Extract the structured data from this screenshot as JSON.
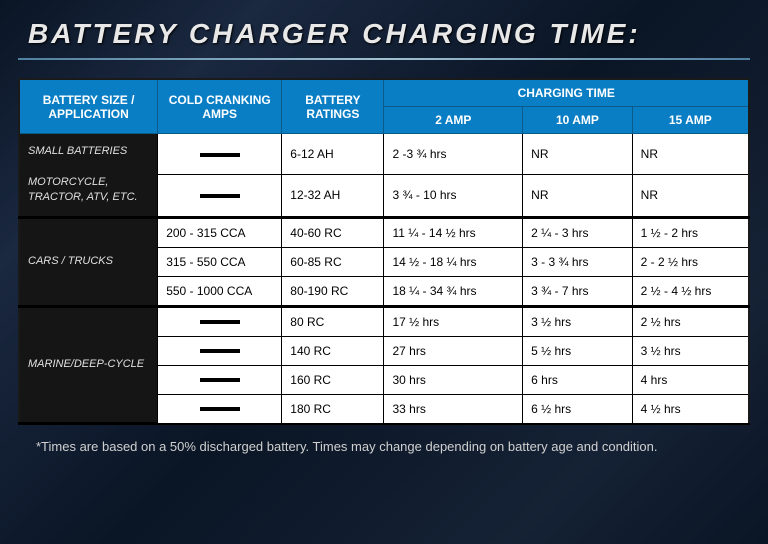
{
  "title": "BATTERY CHARGER CHARGING TIME:",
  "header": {
    "col1": "BATTERY SIZE / APPLICATION",
    "col2": "COLD CRANKING AMPS",
    "col3": "BATTERY RATINGS",
    "ct_span": "CHARGING TIME",
    "ct1": "2 AMP",
    "ct2": "10 AMP",
    "ct3": "15 AMP"
  },
  "groups": [
    {
      "label": "SMALL BATTERIES\n\nMOTORCYCLE, TRACTOR, ATV, ETC.",
      "rows": [
        {
          "cca": "—",
          "rating": "6-12 AH",
          "t2": "2 -3 ¾ hrs",
          "t10": "NR",
          "t15": "NR"
        },
        {
          "cca": "—",
          "rating": "12-32 AH",
          "t2": "3 ¾ - 10 hrs",
          "t10": "NR",
          "t15": "NR"
        }
      ]
    },
    {
      "label": "CARS / TRUCKS",
      "rows": [
        {
          "cca": "200 - 315 CCA",
          "rating": "40-60 RC",
          "t2": "11 ¼ - 14 ½ hrs",
          "t10": "2 ¼ - 3 hrs",
          "t15": "1 ½ - 2 hrs"
        },
        {
          "cca": "315 - 550 CCA",
          "rating": "60-85 RC",
          "t2": "14 ½ - 18 ¼ hrs",
          "t10": "3 - 3 ¾ hrs",
          "t15": "2 - 2 ½ hrs"
        },
        {
          "cca": "550 - 1000 CCA",
          "rating": "80-190 RC",
          "t2": "18 ¼ - 34 ¾ hrs",
          "t10": "3 ¾ - 7 hrs",
          "t15": "2 ½ - 4 ½ hrs"
        }
      ]
    },
    {
      "label": "MARINE/DEEP-CYCLE",
      "rows": [
        {
          "cca": "—",
          "rating": "80 RC",
          "t2": "17 ½ hrs",
          "t10": "3 ½ hrs",
          "t15": "2 ½ hrs"
        },
        {
          "cca": "—",
          "rating": "140 RC",
          "t2": "27 hrs",
          "t10": "5 ½ hrs",
          "t15": "3 ½ hrs"
        },
        {
          "cca": "—",
          "rating": "160 RC",
          "t2": "30 hrs",
          "t10": "6 hrs",
          "t15": "4 hrs"
        },
        {
          "cca": "—",
          "rating": "180 RC",
          "t2": "33 hrs",
          "t10": "6 ½ hrs",
          "t15": "4 ½ hrs"
        }
      ]
    }
  ],
  "footnote": "*Times are based on a 50% discharged battery. Times may change depending on battery age and condition.",
  "styling": {
    "header_bg": "#0a7ec4",
    "header_fg": "#ffffff",
    "group_bg": "#151515",
    "group_fg": "#e0e0e0",
    "cell_bg": "#ffffff",
    "cell_fg": "#000000",
    "page_bg_gradient": [
      "#0a1525",
      "#1a2840",
      "#0a1525",
      "#152235",
      "#0a1525"
    ],
    "title_color": "#e8e8e8",
    "underline_gradient": [
      "#5080a0",
      "#a0c0d0",
      "#5080a0"
    ],
    "font_size_title": 28,
    "font_size_header": 12,
    "font_size_cell": 12,
    "font_size_group": 11,
    "font_size_footnote": 13,
    "col_widths_pct": [
      19,
      17,
      14,
      19,
      15,
      16
    ]
  }
}
